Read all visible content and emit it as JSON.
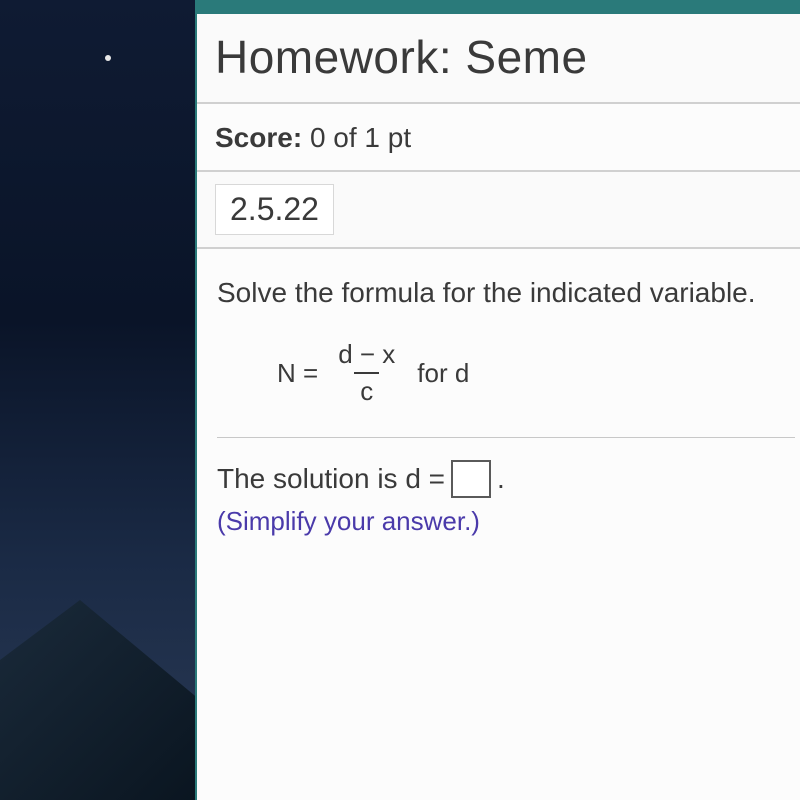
{
  "header": {
    "title": "Homework: Seme"
  },
  "score": {
    "label": "Score:",
    "value": "0 of 1 pt"
  },
  "section": {
    "number": "2.5.22"
  },
  "question": {
    "instruction": "Solve the formula for the indicated variable.",
    "formula": {
      "lhs": "N =",
      "numerator": "d − x",
      "denominator": "c",
      "for_text": "for d"
    },
    "solution_label": "The solution is d =",
    "solution_period": ".",
    "hint": "(Simplify your answer.)"
  },
  "colors": {
    "window_border": "#2a7a7a",
    "text": "#3a3a3a",
    "hint": "#4a3aaa",
    "divider": "#c8c8c8",
    "bg": "#fcfcfc"
  }
}
